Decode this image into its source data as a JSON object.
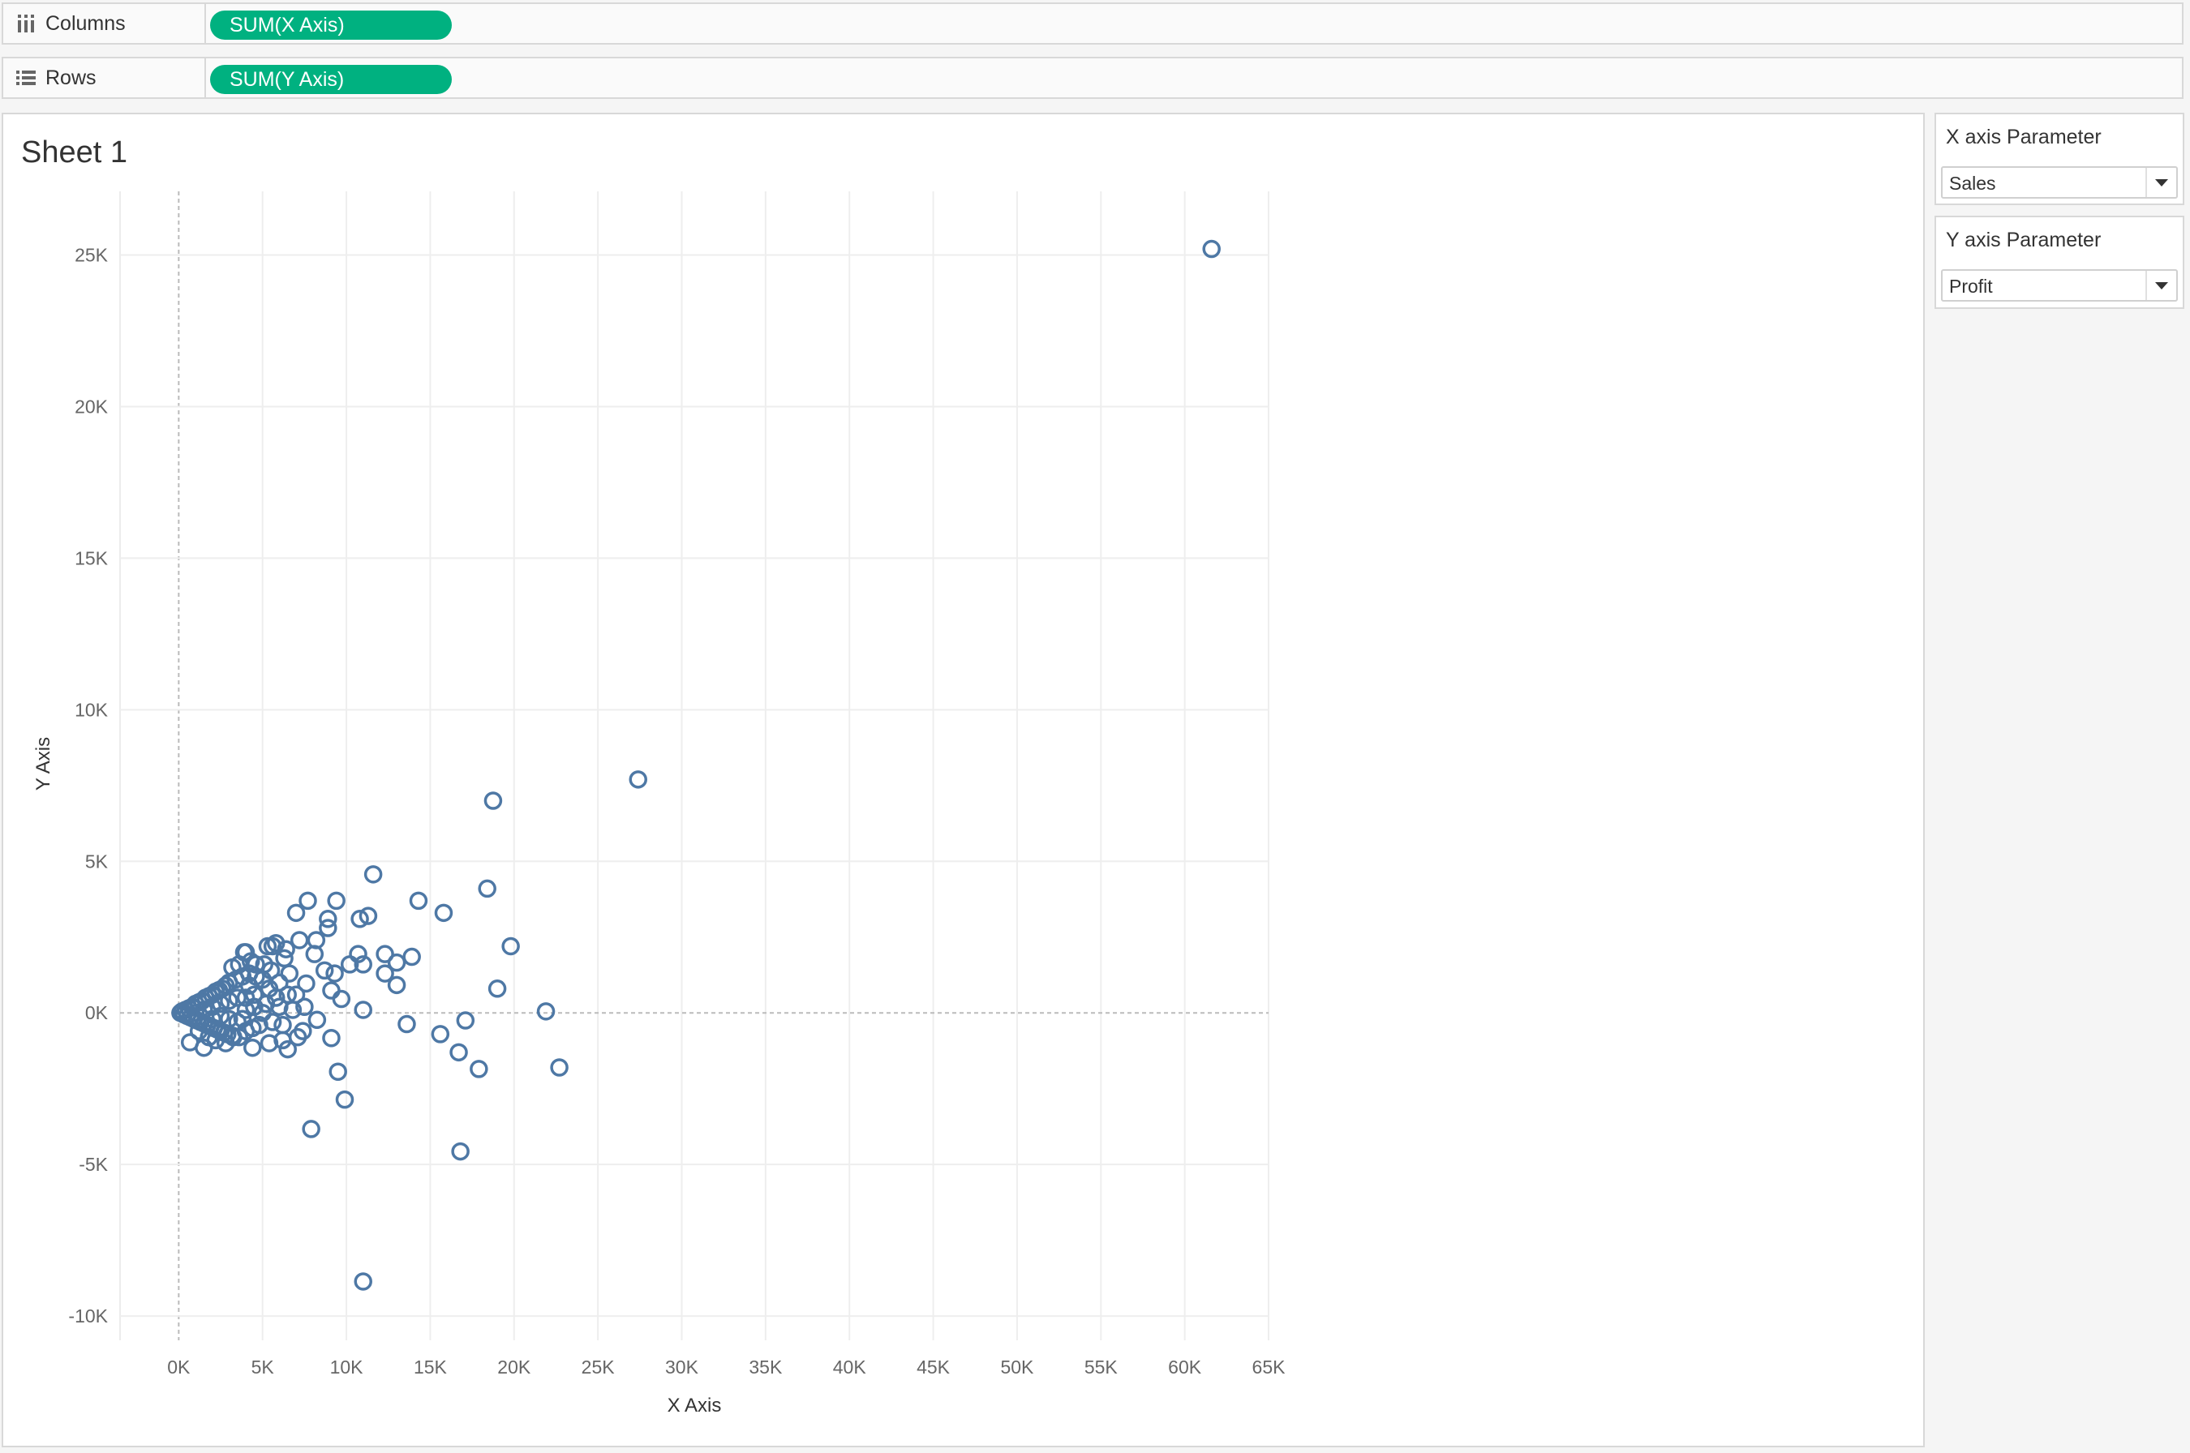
{
  "shelves": {
    "columns": {
      "label": "Columns",
      "icon": "columns-icon",
      "pill": "SUM(X Axis)"
    },
    "rows": {
      "label": "Rows",
      "icon": "rows-icon",
      "pill": "SUM(Y Axis)"
    }
  },
  "sheet": {
    "title": "Sheet 1"
  },
  "parameters": [
    {
      "title": "X axis Parameter",
      "value": "Sales"
    },
    {
      "title": "Y axis Parameter",
      "value": "Profit"
    }
  ],
  "colors": {
    "pill": "#00b180",
    "mark": "#4e78a5"
  },
  "chart_data": {
    "type": "scatter",
    "xlabel": "X Axis",
    "ylabel": "Y Axis",
    "xlim": [
      -3.5,
      65
    ],
    "ylim": [
      -10.8,
      27.1
    ],
    "unit": "K",
    "xticks": [
      "0K",
      "5K",
      "10K",
      "15K",
      "20K",
      "25K",
      "30K",
      "35K",
      "40K",
      "45K",
      "50K",
      "55K",
      "60K",
      "65K"
    ],
    "yticks": [
      "-10K",
      "-5K",
      "0K",
      "5K",
      "10K",
      "15K",
      "20K",
      "25K"
    ],
    "grid": true,
    "marker": "open-circle",
    "points": [
      [
        61.6,
        25.2
      ],
      [
        27.4,
        7.7
      ],
      [
        18.75,
        7.0
      ],
      [
        18.4,
        4.1
      ],
      [
        11.6,
        4.57
      ],
      [
        14.3,
        3.7
      ],
      [
        15.8,
        3.3
      ],
      [
        19.8,
        2.2
      ],
      [
        19.0,
        0.8
      ],
      [
        21.9,
        0.05
      ],
      [
        22.7,
        -1.8
      ],
      [
        17.9,
        -1.85
      ],
      [
        16.7,
        -1.3
      ],
      [
        17.1,
        -0.25
      ],
      [
        15.6,
        -0.7
      ],
      [
        13.6,
        -0.37
      ],
      [
        16.8,
        -4.57
      ],
      [
        11.0,
        -8.86
      ],
      [
        7.9,
        -3.83
      ],
      [
        9.9,
        -2.86
      ],
      [
        9.5,
        -1.94
      ],
      [
        9.1,
        -0.83
      ],
      [
        11.0,
        0.1
      ],
      [
        13.9,
        1.85
      ],
      [
        13.0,
        1.66
      ],
      [
        12.3,
        1.94
      ],
      [
        12.3,
        1.3
      ],
      [
        13.0,
        0.92
      ],
      [
        10.7,
        1.94
      ],
      [
        11.0,
        1.6
      ],
      [
        10.2,
        1.6
      ],
      [
        11.3,
        3.2
      ],
      [
        10.8,
        3.1
      ],
      [
        9.4,
        3.7
      ],
      [
        7.7,
        3.7
      ],
      [
        7.0,
        3.3
      ],
      [
        8.9,
        3.1
      ],
      [
        8.9,
        2.8
      ],
      [
        8.2,
        2.4
      ],
      [
        7.2,
        2.4
      ],
      [
        9.7,
        0.46
      ],
      [
        9.1,
        0.74
      ],
      [
        8.25,
        -0.23
      ],
      [
        7.4,
        -0.6
      ],
      [
        7.1,
        -0.8
      ],
      [
        6.5,
        -1.2
      ],
      [
        5.4,
        -1.0
      ],
      [
        4.4,
        -1.15
      ],
      [
        9.3,
        1.3
      ],
      [
        8.7,
        1.4
      ],
      [
        7.6,
        0.97
      ],
      [
        8.1,
        1.94
      ],
      [
        6.4,
        2.1
      ],
      [
        5.6,
        2.2
      ],
      [
        4.0,
        2.0
      ],
      [
        5.1,
        1.6
      ],
      [
        0.67,
        -0.97
      ],
      [
        1.5,
        -1.15
      ],
      [
        2.8,
        -1.0
      ],
      [
        3.25,
        -0.8
      ],
      [
        3.2,
        1.5
      ],
      [
        3.9,
        2.0
      ],
      [
        4.6,
        1.6
      ],
      [
        5.3,
        2.2
      ],
      [
        5.8,
        2.3
      ],
      [
        6.3,
        1.8
      ],
      [
        4.3,
        1.7
      ],
      [
        3.6,
        1.6
      ],
      [
        0.1,
        0
      ],
      [
        0.2,
        0.05
      ],
      [
        0.3,
        -0.05
      ],
      [
        0.4,
        0.1
      ],
      [
        0.5,
        -0.1
      ],
      [
        0.6,
        0.15
      ],
      [
        0.7,
        -0.15
      ],
      [
        0.8,
        0.2
      ],
      [
        0.9,
        -0.2
      ],
      [
        1.0,
        0.3
      ],
      [
        1.1,
        -0.25
      ],
      [
        1.2,
        0.35
      ],
      [
        1.3,
        -0.3
      ],
      [
        1.4,
        0.4
      ],
      [
        1.5,
        -0.35
      ],
      [
        1.6,
        0.5
      ],
      [
        1.7,
        -0.4
      ],
      [
        1.8,
        0.55
      ],
      [
        1.9,
        -0.45
      ],
      [
        2.0,
        0.6
      ],
      [
        2.1,
        -0.5
      ],
      [
        2.2,
        0.7
      ],
      [
        2.3,
        -0.55
      ],
      [
        2.4,
        0.75
      ],
      [
        2.5,
        -0.6
      ],
      [
        2.6,
        0.8
      ],
      [
        2.7,
        -0.65
      ],
      [
        2.8,
        0.9
      ],
      [
        2.9,
        -0.7
      ],
      [
        3.0,
        1.0
      ],
      [
        3.2,
        -0.75
      ],
      [
        3.4,
        1.1
      ],
      [
        3.6,
        -0.8
      ],
      [
        3.8,
        1.2
      ],
      [
        4.0,
        -0.6
      ],
      [
        4.2,
        1.3
      ],
      [
        4.4,
        -0.5
      ],
      [
        4.6,
        1.2
      ],
      [
        4.8,
        -0.4
      ],
      [
        5.0,
        1.1
      ],
      [
        5.2,
        0.3
      ],
      [
        5.4,
        0.8
      ],
      [
        5.6,
        -0.3
      ],
      [
        5.8,
        0.5
      ],
      [
        6.0,
        0.2
      ],
      [
        6.2,
        -0.4
      ],
      [
        6.5,
        0.6
      ],
      [
        6.8,
        0.1
      ],
      [
        1.5,
        0.1
      ],
      [
        2.0,
        0.2
      ],
      [
        2.5,
        0.3
      ],
      [
        3.0,
        0.4
      ],
      [
        3.5,
        0.5
      ],
      [
        4.0,
        0.5
      ],
      [
        4.5,
        0.6
      ],
      [
        3.0,
        -0.2
      ],
      [
        3.5,
        -0.3
      ],
      [
        4.0,
        0.1
      ],
      [
        4.5,
        0.2
      ],
      [
        5.0,
        0.0
      ],
      [
        2.5,
        -0.1
      ],
      [
        2.0,
        -0.2
      ],
      [
        1.0,
        0.0
      ],
      [
        1.2,
        -0.6
      ],
      [
        1.8,
        -0.8
      ],
      [
        2.2,
        -0.9
      ],
      [
        3.8,
        -0.2
      ],
      [
        4.2,
        0.9
      ],
      [
        5.5,
        1.4
      ],
      [
        6.0,
        1.0
      ],
      [
        6.6,
        1.3
      ],
      [
        7.0,
        0.6
      ],
      [
        7.5,
        0.2
      ],
      [
        6.2,
        -0.9
      ]
    ]
  }
}
